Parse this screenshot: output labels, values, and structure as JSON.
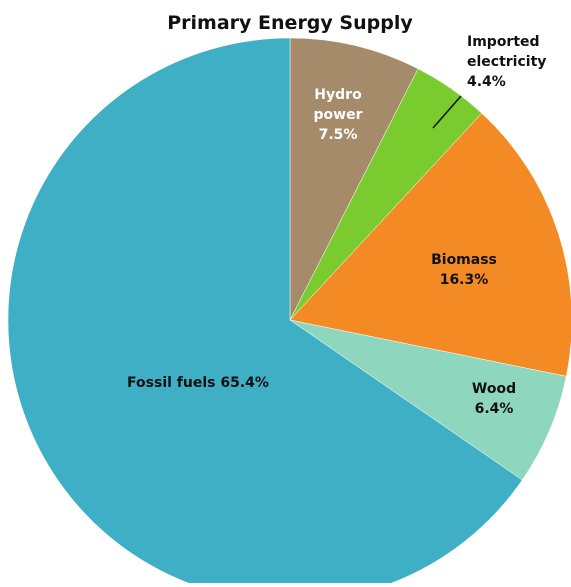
{
  "chart_data": {
    "type": "pie",
    "title": "Primary Energy Supply",
    "slices": [
      {
        "label": "Hydro power",
        "label_lines": [
          "Hydro",
          "power",
          "7.5%"
        ],
        "value": 7.5,
        "color": "#A68B6B",
        "text_color": "#ffffff"
      },
      {
        "label": "Imported electricity",
        "label_lines": [
          "Imported",
          "electricity",
          "4.4%"
        ],
        "value": 4.4,
        "color": "#7ACC2E",
        "text_color": "#111111"
      },
      {
        "label": "Biomass",
        "label_lines": [
          "Biomass",
          "16.3%"
        ],
        "value": 16.3,
        "color": "#F48A24",
        "text_color": "#111111"
      },
      {
        "label": "Wood",
        "label_lines": [
          "Wood",
          "6.4%"
        ],
        "value": 6.4,
        "color": "#8FD6BF",
        "text_color": "#111111"
      },
      {
        "label": "Fossil fuels",
        "label_lines": [
          "Fossil fuels 65.4%"
        ],
        "value": 65.4,
        "color": "#3FAFC6",
        "text_color": "#111111"
      }
    ],
    "start_direction": "12 o'clock",
    "direction": "clockwise",
    "legend": "none"
  }
}
